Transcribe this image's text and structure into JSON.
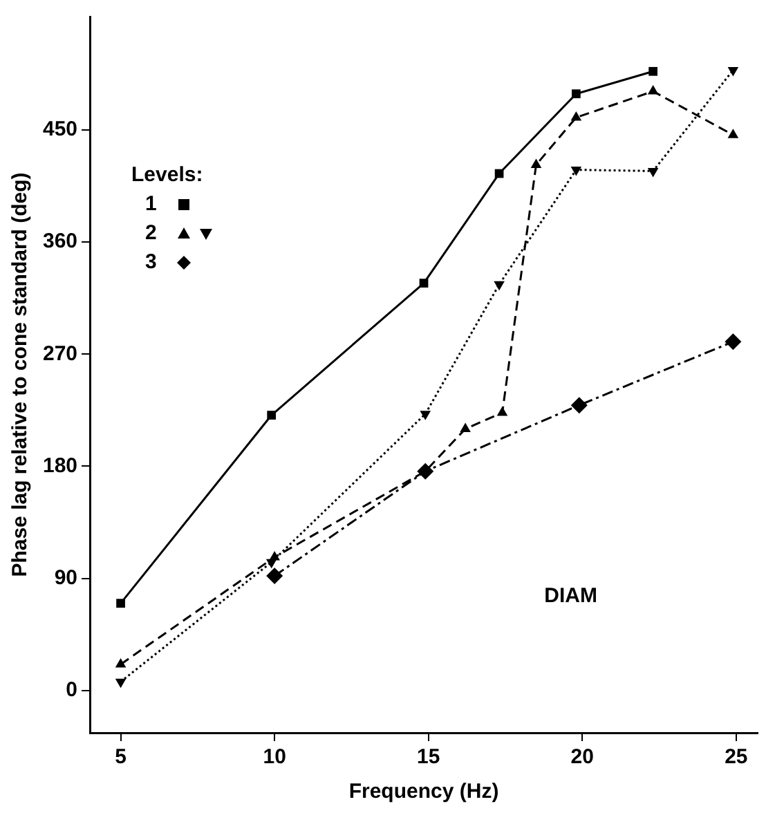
{
  "chart_data": {
    "type": "line",
    "xlabel": "Frequency (Hz)",
    "ylabel": "Phase lag relative to cone standard (deg)",
    "legend_title": "Levels:",
    "legend": "top left",
    "xlim": [
      4,
      25.7
    ],
    "xticks": [
      5,
      10,
      15,
      20,
      25
    ],
    "ylim": [
      -34,
      541
    ],
    "yticks": [
      0,
      90,
      180,
      270,
      360,
      450
    ],
    "annotations": [
      "DIAM"
    ],
    "series": [
      {
        "name": "1",
        "color": "#000000",
        "marker": "square",
        "line_style": "solid",
        "x": [
          5,
          9.9,
          14.85,
          17.3,
          19.8,
          22.3
        ],
        "values": [
          70,
          221,
          327,
          415,
          479,
          497
        ]
      },
      {
        "name": "2",
        "color": "#000000",
        "marker": "triangle",
        "line_style": "dashed",
        "x": [
          5,
          10,
          14.9,
          16.2,
          17.4,
          18.5,
          19.8,
          22.3,
          24.9
        ],
        "values": [
          21,
          107,
          176,
          210,
          223,
          422,
          460,
          481,
          446
        ]
      },
      {
        "color": "#000000",
        "marker": "triangle-down",
        "line_style": "dotted",
        "x": [
          5,
          9.9,
          14.9,
          17.3,
          19.8,
          22.3,
          24.9
        ],
        "values": [
          7,
          103,
          222,
          326,
          418,
          417,
          498
        ]
      },
      {
        "name": "3",
        "color": "#000000",
        "marker": "diamond",
        "line_style": "dashdot",
        "x": [
          10,
          14.9,
          19.9,
          24.9
        ],
        "values": [
          92,
          176,
          229,
          280
        ]
      }
    ]
  }
}
